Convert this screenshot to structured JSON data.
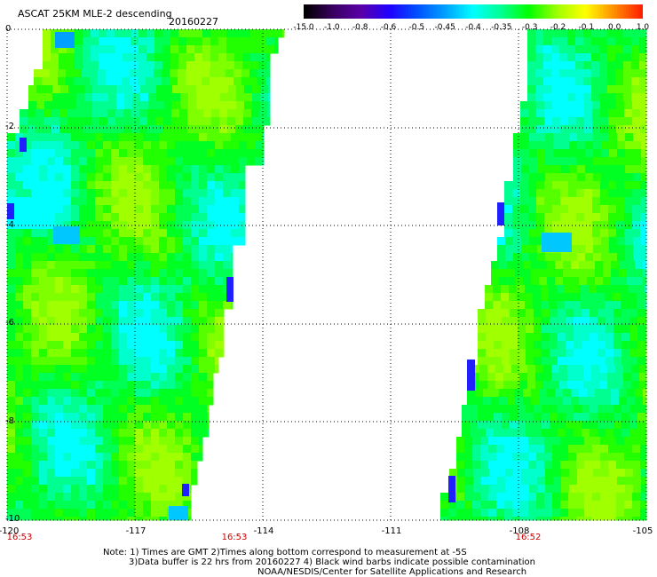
{
  "title": "ASCAT 25KM MLE-2 descending",
  "date": "20160227",
  "colorbar": {
    "labels": [
      "-15.0",
      "-1.0",
      "-0.8",
      "-0.6",
      "-0.5",
      "-0.45",
      "-0.4",
      "-0.35",
      "-0.3",
      "-0.2",
      "-0.1",
      "0.0",
      "1.0"
    ],
    "colors": [
      "#000000",
      "#3a0060",
      "#5a00a8",
      "#2000ff",
      "#0050ff",
      "#00a0ff",
      "#00ffff",
      "#00ff90",
      "#00ff00",
      "#a0ff00",
      "#ffff00",
      "#ff9000",
      "#ff2000"
    ]
  },
  "axes": {
    "lat_labels": [
      "0",
      "-2",
      "-4",
      "-6",
      "-8",
      "-10"
    ],
    "lon_labels": [
      "-120",
      "-117",
      "-114",
      "-111",
      "-108",
      "-105"
    ],
    "lat_range": [
      -10,
      0
    ],
    "lon_range": [
      -120,
      -105
    ]
  },
  "times": [
    "16:53",
    "16:53",
    "16:52"
  ],
  "notes": [
    "Note: 1) Times are GMT 2)Times along bottom correspond to measurement at -5S",
    "3)Data buffer is 22 hrs from 20160227 4) Black wind barbs indicate possible contamination",
    "NOAA/NESDIS/Center for Satellite Applications and Research"
  ]
}
